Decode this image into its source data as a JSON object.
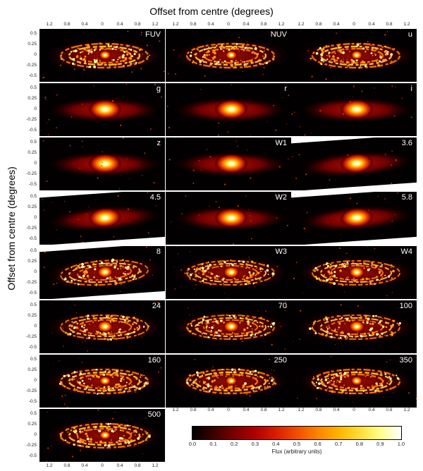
{
  "figure": {
    "top_axis_title": "Offset from centre (degrees)",
    "left_axis_title": "Offset from centre (degrees)",
    "x_ticks": [
      "1.2",
      "0.8",
      "0.4",
      "0",
      "0.4",
      "0.8",
      "1.2"
    ],
    "y_ticks": [
      "0.5",
      "0.25",
      "0",
      "-0.25",
      "-0.5"
    ]
  },
  "panels": [
    {
      "label": "FUV"
    },
    {
      "label": "NUV"
    },
    {
      "label": "u"
    },
    {
      "label": "g"
    },
    {
      "label": "r"
    },
    {
      "label": "i"
    },
    {
      "label": "z"
    },
    {
      "label": "W1"
    },
    {
      "label": "3.6"
    },
    {
      "label": "4.5"
    },
    {
      "label": "W2"
    },
    {
      "label": "5.8"
    },
    {
      "label": "8"
    },
    {
      "label": "W3"
    },
    {
      "label": "W4"
    },
    {
      "label": "24"
    },
    {
      "label": "70"
    },
    {
      "label": "100"
    },
    {
      "label": "160"
    },
    {
      "label": "250"
    },
    {
      "label": "350"
    },
    {
      "label": "500"
    }
  ],
  "colorbar": {
    "label": "Flux (arbitrary units)",
    "ticks": [
      "0.0",
      "0.1",
      "0.2",
      "0.3",
      "0.4",
      "0.5",
      "0.6",
      "0.7",
      "0.8",
      "0.9",
      "1.0"
    ],
    "stops": [
      "#000000",
      "#3a0000",
      "#7a0000",
      "#b00000",
      "#d81e00",
      "#f04e00",
      "#fb8400",
      "#ffb300",
      "#ffdd33",
      "#ffff8a",
      "#ffffff"
    ]
  }
}
